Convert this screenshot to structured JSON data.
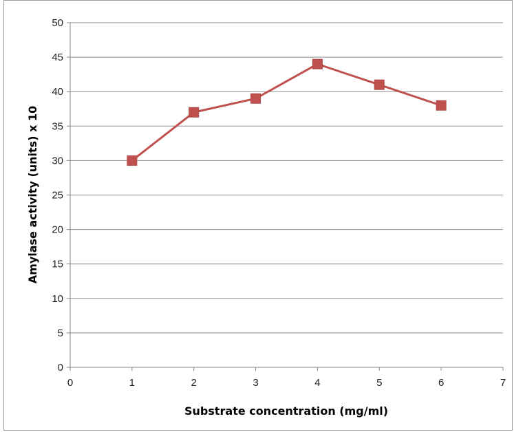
{
  "chart_data": {
    "type": "line",
    "title": "",
    "xlabel": "Substrate concentration (mg/ml)",
    "ylabel": "Amylase activity (units) x 10",
    "xlim": [
      0,
      7
    ],
    "ylim": [
      0,
      50
    ],
    "x_ticks": [
      0,
      1,
      2,
      3,
      4,
      5,
      6,
      7
    ],
    "y_ticks": [
      0,
      5,
      10,
      15,
      20,
      25,
      30,
      35,
      40,
      45,
      50
    ],
    "grid": "horizontal",
    "legend": "none",
    "series": [
      {
        "x": [
          1,
          2,
          3,
          4,
          5,
          6
        ],
        "y": [
          30,
          37,
          39,
          44,
          41,
          38
        ],
        "color": "#c0504d",
        "marker": "square"
      }
    ]
  }
}
